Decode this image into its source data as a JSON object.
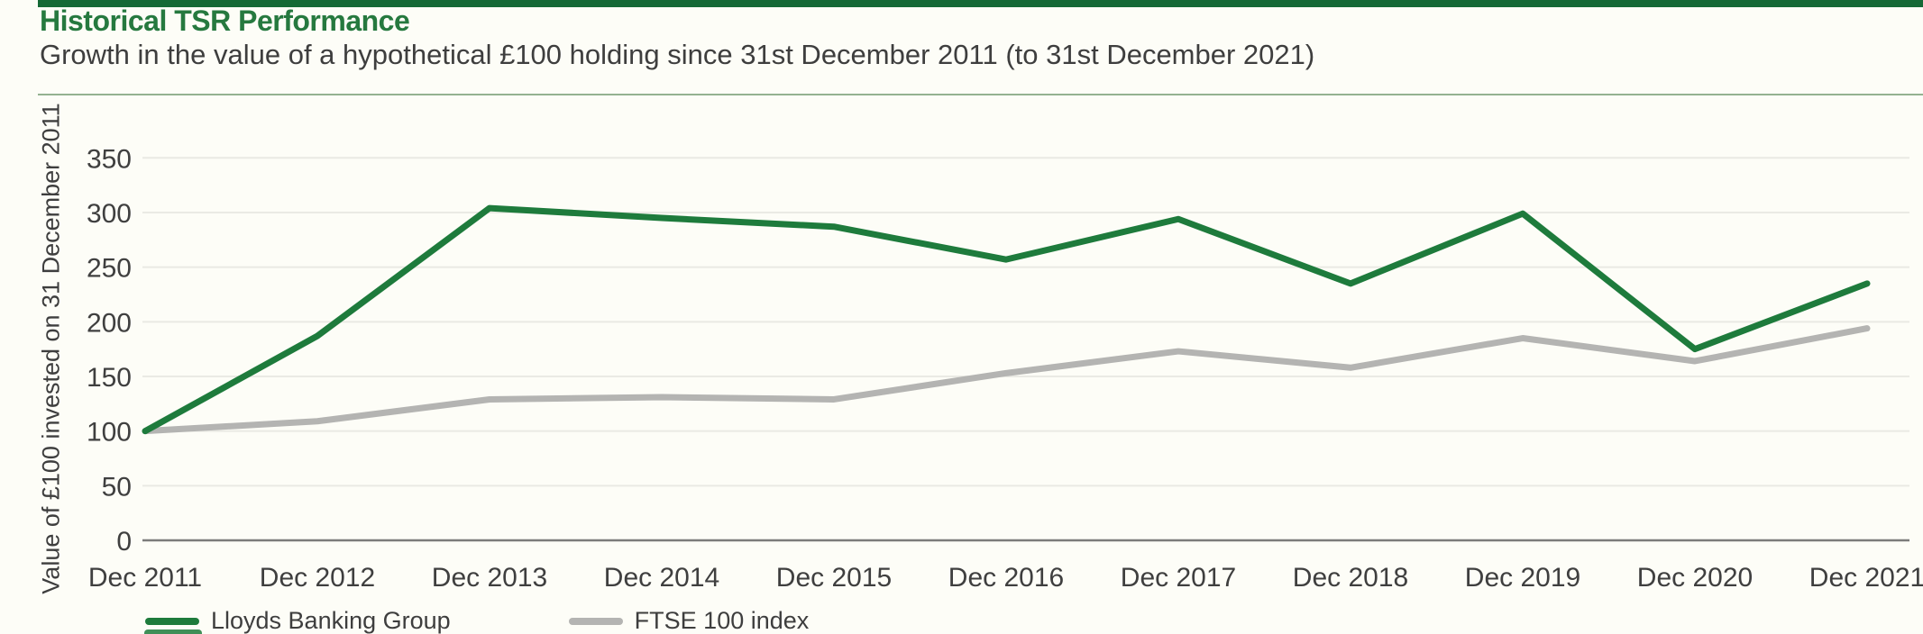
{
  "header": {
    "title": "Historical TSR Performance",
    "subtitle": "Growth in the value of a hypothetical £100 holding since 31st December 2011 (to 31st December 2021)"
  },
  "chart_data": {
    "type": "line",
    "title": "Historical TSR Performance",
    "subtitle": "Growth in the value of a hypothetical £100 holding since 31st December 2011 (to 31st December 2021)",
    "categories": [
      "Dec 2011",
      "Dec 2012",
      "Dec 2013",
      "Dec 2014",
      "Dec 2015",
      "Dec 2016",
      "Dec 2017",
      "Dec 2018",
      "Dec 2019",
      "Dec 2020",
      "Dec 2021"
    ],
    "series": [
      {
        "name": "Lloyds Banking Group",
        "color": "#1E7B3C",
        "values": [
          100,
          187,
          304,
          295,
          287,
          257,
          294,
          235,
          299,
          175,
          235
        ]
      },
      {
        "name": "FTSE 100 index",
        "color": "#B4B4B2",
        "values": [
          100,
          109,
          129,
          131,
          129,
          153,
          173,
          158,
          185,
          164,
          194
        ]
      }
    ],
    "xlabel": "",
    "ylabel": "Value of £100 invested on 31 December 2011",
    "ylim": [
      0,
      350
    ],
    "yticks": [
      0,
      50,
      100,
      150,
      200,
      250,
      300,
      350
    ],
    "grid": true,
    "legend_position": "bottom"
  },
  "colors": {
    "accent_bar": "#156936",
    "title_green": "#26793F",
    "divider": "#94B290",
    "text": "#3E3E3E",
    "tick_text": "#3F3F3F",
    "gridline": "#EAEAE4",
    "axis_line": "#7C7C7A",
    "background": "#FDFDF7",
    "lloyds_line": "#1E7B3C",
    "ftse_line": "#B4B4B2"
  }
}
